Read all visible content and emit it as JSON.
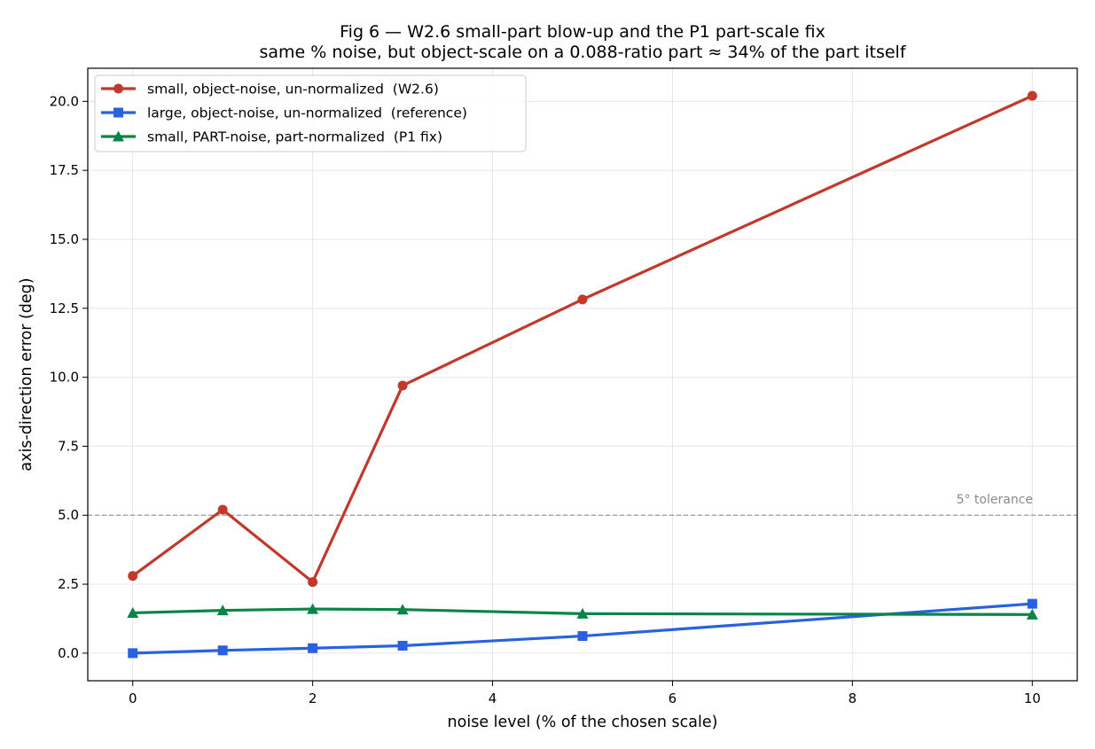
{
  "chart_data": {
    "type": "line",
    "title": "Fig 6 — W2.6 small-part blow-up and the P1 part-scale fix",
    "subtitle": "same % noise, but object-scale on a 0.088-ratio part ≈ 34% of the part itself",
    "xlabel": "noise level (% of the chosen scale)",
    "ylabel": "axis-direction error (deg)",
    "xlim": [
      -0.5,
      10.5
    ],
    "ylim": [
      -1.0,
      21.2
    ],
    "xticks": [
      0,
      2,
      4,
      6,
      8,
      10
    ],
    "xtick_labels": [
      "0",
      "2",
      "4",
      "6",
      "8",
      "10"
    ],
    "yticks": [
      0.0,
      2.5,
      5.0,
      7.5,
      10.0,
      12.5,
      15.0,
      17.5,
      20.0
    ],
    "ytick_labels": [
      "0.0",
      "2.5",
      "5.0",
      "7.5",
      "10.0",
      "12.5",
      "15.0",
      "17.5",
      "20.0"
    ],
    "grid": true,
    "legend_position": "upper-left",
    "x": [
      0,
      1,
      2,
      3,
      5,
      10
    ],
    "series": [
      {
        "name": "small, object-noise, un-normalized  (W2.6)",
        "color": "#c0392b",
        "marker": "circle",
        "values": [
          2.8,
          5.2,
          2.58,
          9.7,
          12.82,
          20.2
        ]
      },
      {
        "name": "large, object-noise, un-normalized  (reference)",
        "color": "#2962e0",
        "marker": "square",
        "values": [
          0.0,
          0.1,
          0.18,
          0.27,
          0.62,
          1.79
        ]
      },
      {
        "name": "small, PART-noise, part-normalized  (P1 fix)",
        "color": "#0a8545",
        "marker": "triangle",
        "values": [
          1.46,
          1.55,
          1.6,
          1.58,
          1.43,
          1.4
        ]
      }
    ],
    "reference_lines": [
      {
        "y": 5.0,
        "label": "5° tolerance",
        "color": "#999999",
        "style": "dashed"
      }
    ]
  }
}
